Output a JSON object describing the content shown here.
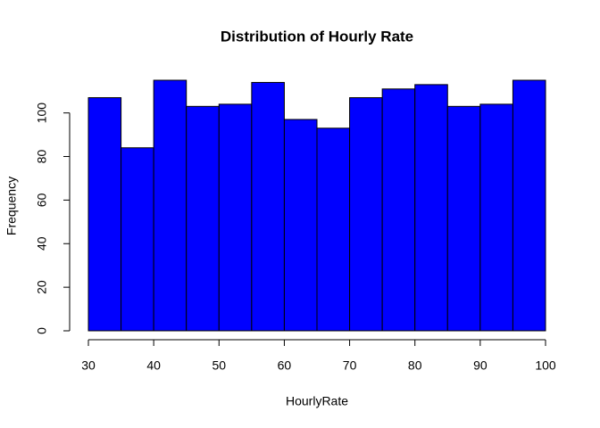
{
  "chart_data": {
    "type": "histogram",
    "title": "Distribution of Hourly Rate",
    "x_label": "HourlyRate",
    "y_label": "Frequency",
    "bins": [
      30,
      35,
      40,
      45,
      50,
      55,
      60,
      65,
      70,
      75,
      80,
      85,
      90,
      95,
      100
    ],
    "values": [
      107,
      84,
      115,
      103,
      104,
      114,
      97,
      93,
      107,
      111,
      113,
      103,
      104,
      115
    ],
    "color": "#0000ff",
    "xlim": [
      30,
      100
    ],
    "xticks": [
      30,
      40,
      50,
      60,
      70,
      80,
      90,
      100
    ],
    "ylim": [
      0,
      115
    ],
    "yticks": [
      0,
      20,
      40,
      60,
      80,
      100
    ]
  }
}
